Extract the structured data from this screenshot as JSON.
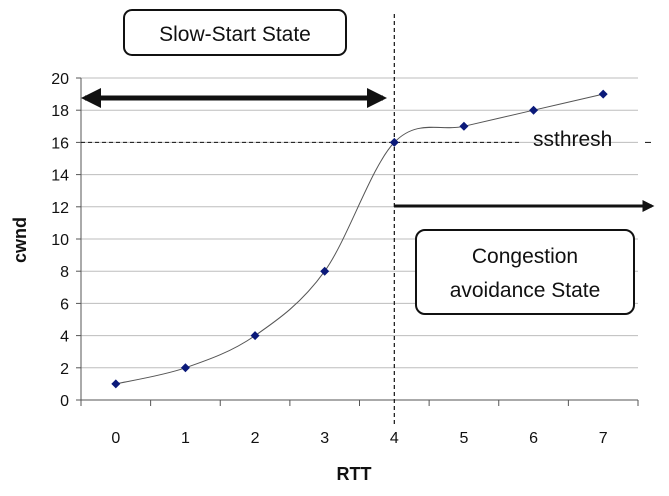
{
  "chart_data": {
    "type": "line",
    "title": "",
    "xlabel": "RTT",
    "ylabel": "cwnd",
    "x": [
      0,
      1,
      2,
      3,
      4,
      5,
      6,
      7
    ],
    "xlim": [
      -0.5,
      7.5
    ],
    "ylim": [
      0,
      20
    ],
    "yticks": [
      0,
      2,
      4,
      6,
      8,
      10,
      12,
      14,
      16,
      18,
      20
    ],
    "grid": "horizontal",
    "series": [
      {
        "values": [
          1,
          2,
          4,
          8,
          16,
          17,
          18,
          19
        ],
        "color": "#0b1a7a"
      }
    ],
    "annotations": {
      "slow_start_label": "Slow-Start State",
      "congestion_label_line1": "Congestion",
      "congestion_label_line2": "avoidance State",
      "ssthresh_label": "ssthresh",
      "ssthresh_value": 16,
      "boundary_x": 4
    }
  }
}
